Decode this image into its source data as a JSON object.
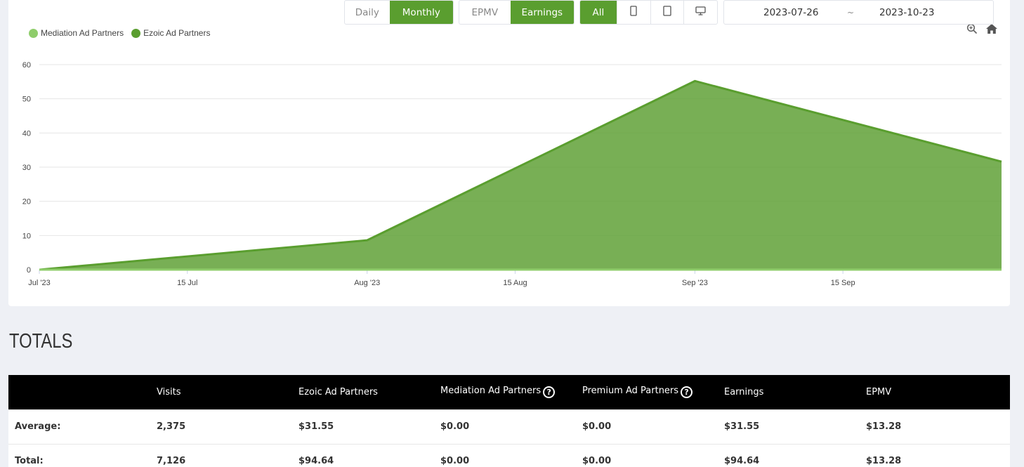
{
  "controls": {
    "period": {
      "daily": "Daily",
      "monthly": "Monthly"
    },
    "metric": {
      "epmv": "EPMV",
      "earnings": "Earnings"
    },
    "device": {
      "all": "All",
      "icons": [
        "mobile-icon",
        "tablet-icon",
        "desktop-icon"
      ]
    },
    "date_from": "2023-07-26",
    "date_sep": "~",
    "date_to": "2023-10-23"
  },
  "legend": [
    {
      "label": "Mediation Ad Partners",
      "color": "#8fcd6b"
    },
    {
      "label": "Ezoic Ad Partners",
      "color": "#5a9e2f"
    }
  ],
  "chart_data": {
    "type": "area",
    "xlim": [
      "2023-07-01",
      "2023-09-30"
    ],
    "ylim": [
      0,
      60
    ],
    "y_ticks": [
      0,
      10,
      20,
      30,
      40,
      50,
      60
    ],
    "x_ticks": [
      {
        "date": "2023-07-01",
        "label": "Jul '23"
      },
      {
        "date": "2023-07-15",
        "label": "15 Jul"
      },
      {
        "date": "2023-08-01",
        "label": "Aug '23"
      },
      {
        "date": "2023-08-15",
        "label": "15 Aug"
      },
      {
        "date": "2023-09-01",
        "label": "Sep '23"
      },
      {
        "date": "2023-09-15",
        "label": "15 Sep"
      }
    ],
    "series": [
      {
        "name": "Mediation Ad Partners",
        "color": "#8fcd6b",
        "x": [
          "2023-07-01",
          "2023-08-01",
          "2023-09-01",
          "2023-09-30"
        ],
        "values": [
          0,
          0,
          0,
          0
        ]
      },
      {
        "name": "Ezoic Ad Partners",
        "color": "#5a9e2f",
        "x": [
          "2023-07-01",
          "2023-08-01",
          "2023-09-01",
          "2023-09-30"
        ],
        "values": [
          0,
          8.6,
          55.2,
          31.6
        ]
      }
    ],
    "grid": true,
    "legend_position": "top-left"
  },
  "totals": {
    "title": "TOTALS",
    "columns": [
      "",
      "Visits",
      "Ezoic Ad Partners",
      "Mediation Ad Partners",
      "Premium Ad Partners",
      "Earnings",
      "EPMV"
    ],
    "help_symbol": "?",
    "rows": [
      {
        "label": "Average:",
        "visits": "2,375",
        "ezoic": "$31.55",
        "mediation": "$0.00",
        "premium": "$0.00",
        "earnings": "$31.55",
        "epmv": "$13.28"
      },
      {
        "label": "Total:",
        "visits": "7,126",
        "ezoic": "$94.64",
        "mediation": "$0.00",
        "premium": "$0.00",
        "earnings": "$94.64",
        "epmv": "$13.28"
      }
    ]
  }
}
